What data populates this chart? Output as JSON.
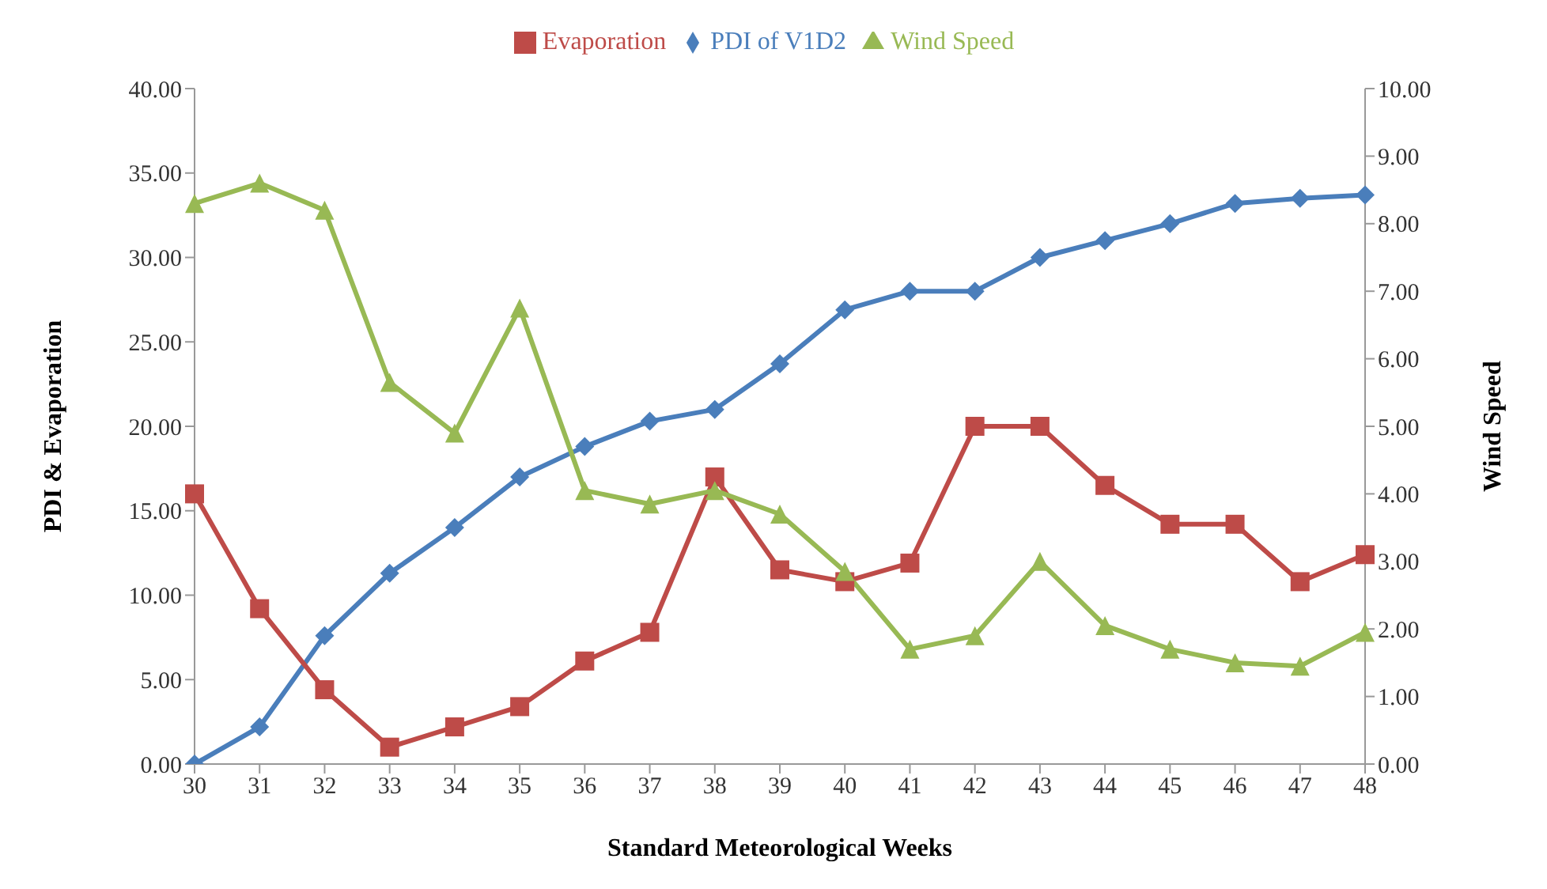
{
  "chart_data": {
    "type": "line",
    "xlabel": "Standard Meteorological Weeks",
    "ylabel": "PDI & Evaporation",
    "y2label": "Wind Speed",
    "categories": [
      "30",
      "31",
      "32",
      "33",
      "34",
      "35",
      "36",
      "37",
      "38",
      "39",
      "40",
      "41",
      "42",
      "43",
      "44",
      "45",
      "46",
      "47",
      "48"
    ],
    "series": [
      {
        "name": "PDI of V1D2",
        "color": "#4a7ebb",
        "marker": "diamond",
        "values": [
          0,
          2.2,
          7.6,
          11.3,
          14,
          17,
          18.8,
          20.3,
          21,
          23.7,
          26.9,
          28,
          28,
          30,
          31,
          32,
          33.2,
          33.5,
          33.7
        ]
      },
      {
        "name": "Evaporation",
        "color": "#be4b48",
        "marker": "square",
        "values": [
          16,
          9.2,
          4.4,
          1.0,
          2.2,
          3.4,
          6.1,
          7.8,
          17,
          11.5,
          10.8,
          11.9,
          20,
          20,
          16.5,
          14.2,
          14.2,
          10.8,
          12.4
        ]
      },
      {
        "name": "Wind Speed",
        "color": "#98b954",
        "marker": "triangle",
        "axis": "y2",
        "values": [
          8.3,
          8.6,
          8.2,
          5.65,
          4.9,
          6.75,
          4.05,
          3.85,
          4.05,
          3.7,
          2.85,
          1.7,
          1.9,
          3.0,
          2.05,
          1.7,
          1.5,
          1.45,
          1.95
        ]
      }
    ],
    "ylim": [
      0,
      40
    ],
    "yticks": [
      {
        "value": 0,
        "label": "0.00"
      },
      {
        "value": 5,
        "label": "5.00"
      },
      {
        "value": 10,
        "label": "10.00"
      },
      {
        "value": 15,
        "label": "15.00"
      },
      {
        "value": 20,
        "label": "20.00"
      },
      {
        "value": 25,
        "label": "25.00"
      },
      {
        "value": 30,
        "label": "30.00"
      },
      {
        "value": 35,
        "label": "35.00"
      },
      {
        "value": 40,
        "label": "40.00"
      }
    ],
    "y2lim": [
      0,
      10
    ],
    "y2ticks": [
      {
        "value": 0,
        "label": "0.00"
      },
      {
        "value": 1,
        "label": "1.00"
      },
      {
        "value": 2,
        "label": "2.00"
      },
      {
        "value": 3,
        "label": "3.00"
      },
      {
        "value": 4,
        "label": "4.00"
      },
      {
        "value": 5,
        "label": "5.00"
      },
      {
        "value": 6,
        "label": "6.00"
      },
      {
        "value": 7,
        "label": "7.00"
      },
      {
        "value": 8,
        "label": "8.00"
      },
      {
        "value": 9,
        "label": "9.00"
      },
      {
        "value": 10,
        "label": "10.00"
      }
    ],
    "grid": false,
    "legend": "top",
    "line_style": "solid"
  }
}
